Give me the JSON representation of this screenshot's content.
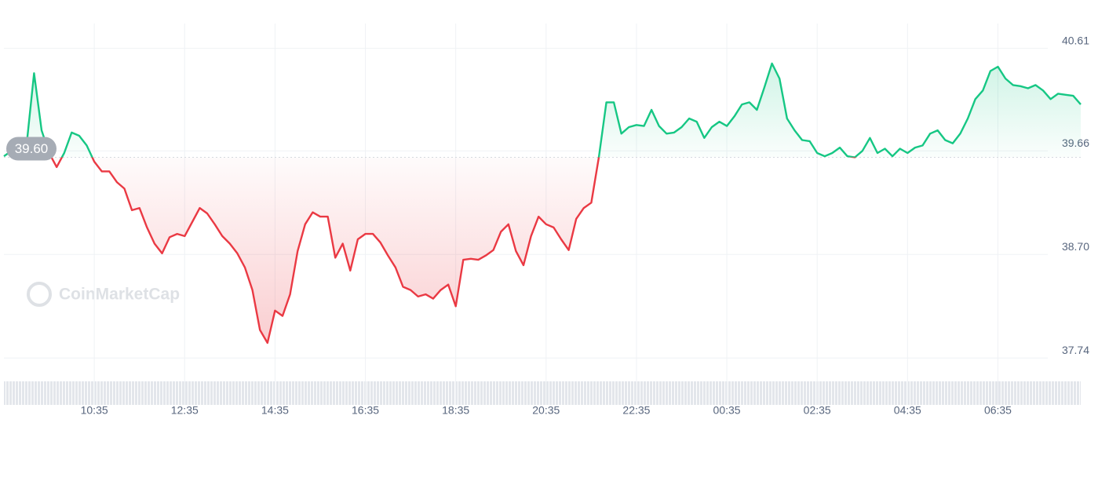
{
  "chart_data": {
    "type": "line",
    "watermark": "CoinMarketCap",
    "reference": {
      "value": 39.6,
      "label": "39.60"
    },
    "colors": {
      "up": "#16c784",
      "down": "#ea3943"
    },
    "grid": true,
    "xlim": [
      0,
      143
    ],
    "xticks": [
      {
        "value": 12,
        "label": "10:35"
      },
      {
        "value": 24,
        "label": "12:35"
      },
      {
        "value": 36,
        "label": "14:35"
      },
      {
        "value": 48,
        "label": "16:35"
      },
      {
        "value": 60,
        "label": "18:35"
      },
      {
        "value": 72,
        "label": "20:35"
      },
      {
        "value": 84,
        "label": "22:35"
      },
      {
        "value": 96,
        "label": "00:35"
      },
      {
        "value": 108,
        "label": "02:35"
      },
      {
        "value": 120,
        "label": "04:35"
      },
      {
        "value": 132,
        "label": "06:35"
      }
    ],
    "ylim": [
      37.64,
      40.84
    ],
    "yticks": [
      40.61,
      39.66,
      {
        "value": 38.7,
        "label": "38.70"
      },
      37.74
    ],
    "values": [
      39.61,
      39.66,
      39.69,
      39.71,
      40.38,
      39.85,
      39.64,
      39.51,
      39.64,
      39.83,
      39.8,
      39.71,
      39.56,
      39.47,
      39.47,
      39.37,
      39.31,
      39.11,
      39.13,
      38.95,
      38.8,
      38.71,
      38.86,
      38.89,
      38.87,
      39.0,
      39.13,
      39.08,
      38.98,
      38.87,
      38.8,
      38.71,
      38.58,
      38.37,
      38.0,
      37.88,
      38.18,
      38.13,
      38.33,
      38.73,
      38.98,
      39.09,
      39.05,
      39.05,
      38.67,
      38.8,
      38.55,
      38.84,
      38.89,
      38.89,
      38.81,
      38.69,
      38.58,
      38.4,
      38.37,
      38.31,
      38.33,
      38.29,
      38.37,
      38.42,
      38.22,
      38.65,
      38.66,
      38.65,
      38.69,
      38.74,
      38.91,
      38.98,
      38.73,
      38.6,
      38.87,
      39.05,
      38.98,
      38.95,
      38.84,
      38.74,
      39.03,
      39.13,
      39.18,
      39.6,
      40.11,
      40.11,
      39.82,
      39.88,
      39.9,
      39.89,
      40.04,
      39.89,
      39.82,
      39.83,
      39.88,
      39.96,
      39.93,
      39.78,
      39.88,
      39.93,
      39.89,
      39.98,
      40.09,
      40.11,
      40.04,
      40.25,
      40.47,
      40.33,
      39.96,
      39.85,
      39.76,
      39.75,
      39.64,
      39.61,
      39.64,
      39.69,
      39.61,
      39.6,
      39.66,
      39.78,
      39.64,
      39.68,
      39.61,
      39.68,
      39.64,
      39.69,
      39.71,
      39.82,
      39.85,
      39.76,
      39.73,
      39.82,
      39.96,
      40.14,
      40.22,
      40.4,
      40.44,
      40.33,
      40.27,
      40.26,
      40.24,
      40.27,
      40.22,
      40.14,
      40.19,
      40.18,
      40.17,
      40.09
    ]
  }
}
